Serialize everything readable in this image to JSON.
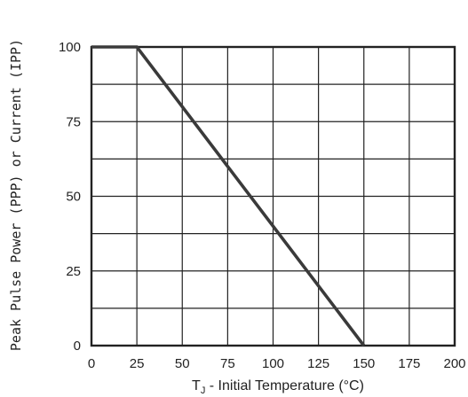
{
  "chart_data": {
    "type": "line",
    "ylabel": "Peak Pulse Power (PPP) or Current (IPP)",
    "xlabel_main": "T",
    "xlabel_sub": "J",
    "xlabel_rest": " - Initial Temperature (°C)",
    "xlim": [
      0,
      200
    ],
    "ylim": [
      0,
      100
    ],
    "x_ticks": [
      0,
      25,
      50,
      75,
      100,
      125,
      150,
      175,
      200
    ],
    "y_ticks": [
      0,
      25,
      50,
      75,
      100
    ],
    "grid": true,
    "series": [
      {
        "x": [
          0,
          25,
          150
        ],
        "y": [
          100,
          100,
          0
        ]
      }
    ]
  },
  "colors": {
    "line": "#3a3a3a",
    "grid": "#222222",
    "frame": "#222222"
  }
}
